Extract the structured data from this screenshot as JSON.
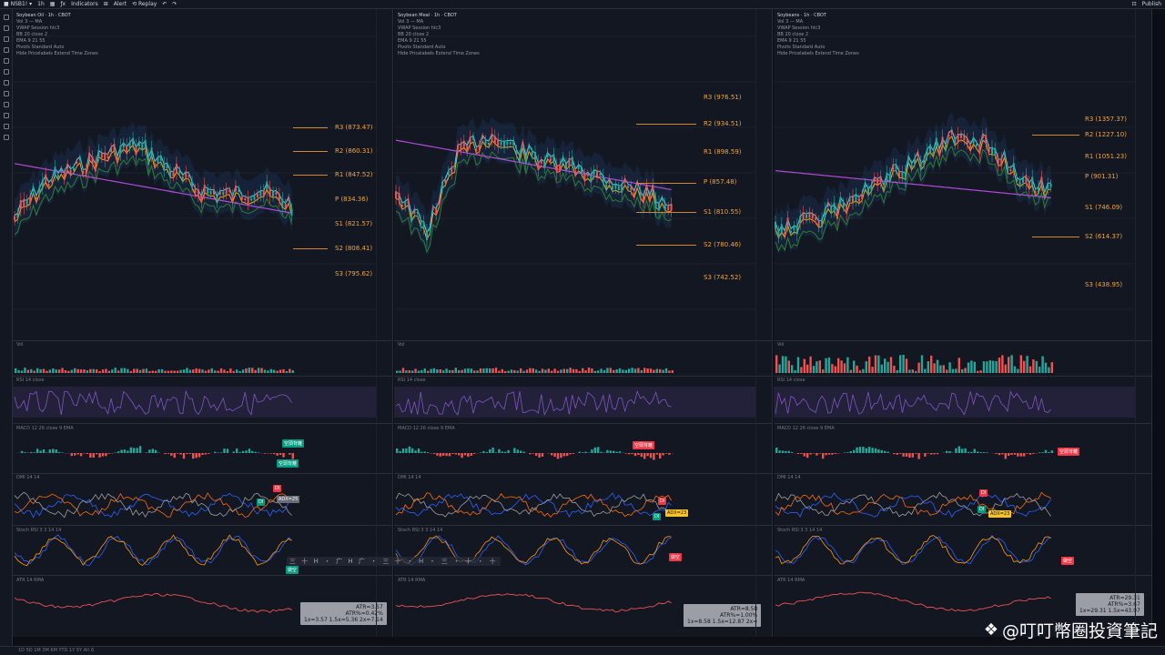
{
  "topbar": {
    "items": [
      "■ NSB1! ▾",
      "1h",
      "▦",
      "ƒx",
      "Indicators",
      "⊞",
      "Alert",
      "⟲ Replay",
      "↶",
      "↷"
    ],
    "right_items": [
      "⊡",
      "Publish"
    ]
  },
  "panels": [
    {
      "legend": [
        "Soybean Oil · 1h · CBOT",
        "Vol  3  —  MA",
        "VWAP  Session  hlc3",
        "BB  20  close  2",
        "EMA  9  21  55",
        "Pivots Standard  Auto",
        "Hide Pricelabels  Extend  Time Zones"
      ],
      "pivots": [
        {
          "label": "R3 (873.47)"
        },
        {
          "label": "R2 (860.31)"
        },
        {
          "label": "R1 (847.52)"
        },
        {
          "label": "P (834.36)"
        },
        {
          "label": "S1 (821.57)"
        },
        {
          "label": "S2 (808.41)"
        },
        {
          "label": "S3 (795.62)"
        }
      ],
      "pane_titles": [
        "Vol",
        "RSI 14 close",
        "MACD 12 26 close 9 EMA",
        "DMI 14 14",
        "Stoch RSI 3 3 14 14",
        "ATR 14 RMA"
      ],
      "tags": [
        "空頭背離",
        "空頭背離",
        "DI",
        "DI",
        "ADX=25",
        "做空"
      ],
      "atr": [
        "ATR=3.57",
        "ATR%=0.42%",
        "1x=3.57  1.5x=5.36  2x=7.14"
      ],
      "scroll": "三 十 H ・ 广 H 广 ・ 三 十 ・ H ・ 三 ・ 十 ・ 十"
    },
    {
      "legend": [
        "Soybean Meal · 1h · CBOT",
        "Vol  3  —  MA",
        "VWAP  Session  hlc3",
        "BB  20  close  2",
        "EMA  9  21  55",
        "Pivots Standard  Auto",
        "Hide Pricelabels  Extend  Time Zones"
      ],
      "pivots": [
        {
          "label": "R3 (976.51)"
        },
        {
          "label": "R2 (934.51)"
        },
        {
          "label": "R1 (898.59)"
        },
        {
          "label": "P (857.48)"
        },
        {
          "label": "S1 (810.55)"
        },
        {
          "label": "S2 (780.46)"
        },
        {
          "label": "S3 (742.52)"
        }
      ],
      "pane_titles": [
        "Vol",
        "RSI 14 close",
        "MACD 12 26 close 9 EMA",
        "DMI 14 14",
        "Stoch RSI 3 3 14 14",
        "ATR 14 RMA"
      ],
      "tags": [
        "空頭背離",
        "DI",
        "DI",
        "ADX=23",
        "做空"
      ],
      "atr": [
        "ATR=8.58",
        "ATR%=1.00%",
        "1x=8.58  1.5x=12.87  2x="
      ]
    },
    {
      "legend": [
        "Soybeans · 1h · CBOT",
        "Vol  3  —  MA",
        "VWAP  Session  hlc3",
        "BB  20  close  2",
        "EMA  9  21  55",
        "Pivots Standard  Auto",
        "Hide Pricelabels  Extend  Time Zones"
      ],
      "pivots": [
        {
          "label": "R3 (1357.37)"
        },
        {
          "label": "R2 (1227.10)"
        },
        {
          "label": "R1 (1051.23)"
        },
        {
          "label": "P (901.31)"
        },
        {
          "label": "S1 (746.09)"
        },
        {
          "label": "S2 (614.37)"
        },
        {
          "label": "S3 (438.95)"
        }
      ],
      "pane_titles": [
        "Vol",
        "RSI 14 close",
        "MACD 12 26 close 9 EMA",
        "DMI 14 14",
        "Stoch RSI 3 3 14 14",
        "ATR 14 RMA"
      ],
      "tags": [
        "空頭背離",
        "DI",
        "DI",
        "ADX=23",
        "做空"
      ],
      "atr": [
        "ATR=29.31",
        "ATR%=3.67",
        "1x=29.31  1.5x=43.97"
      ]
    }
  ],
  "watermark": "@叮叮幣圈投資筆記",
  "bottombar": "1D  5D  1M  3M  6M  YTD  1Y  5Y  All   ⏱"
}
